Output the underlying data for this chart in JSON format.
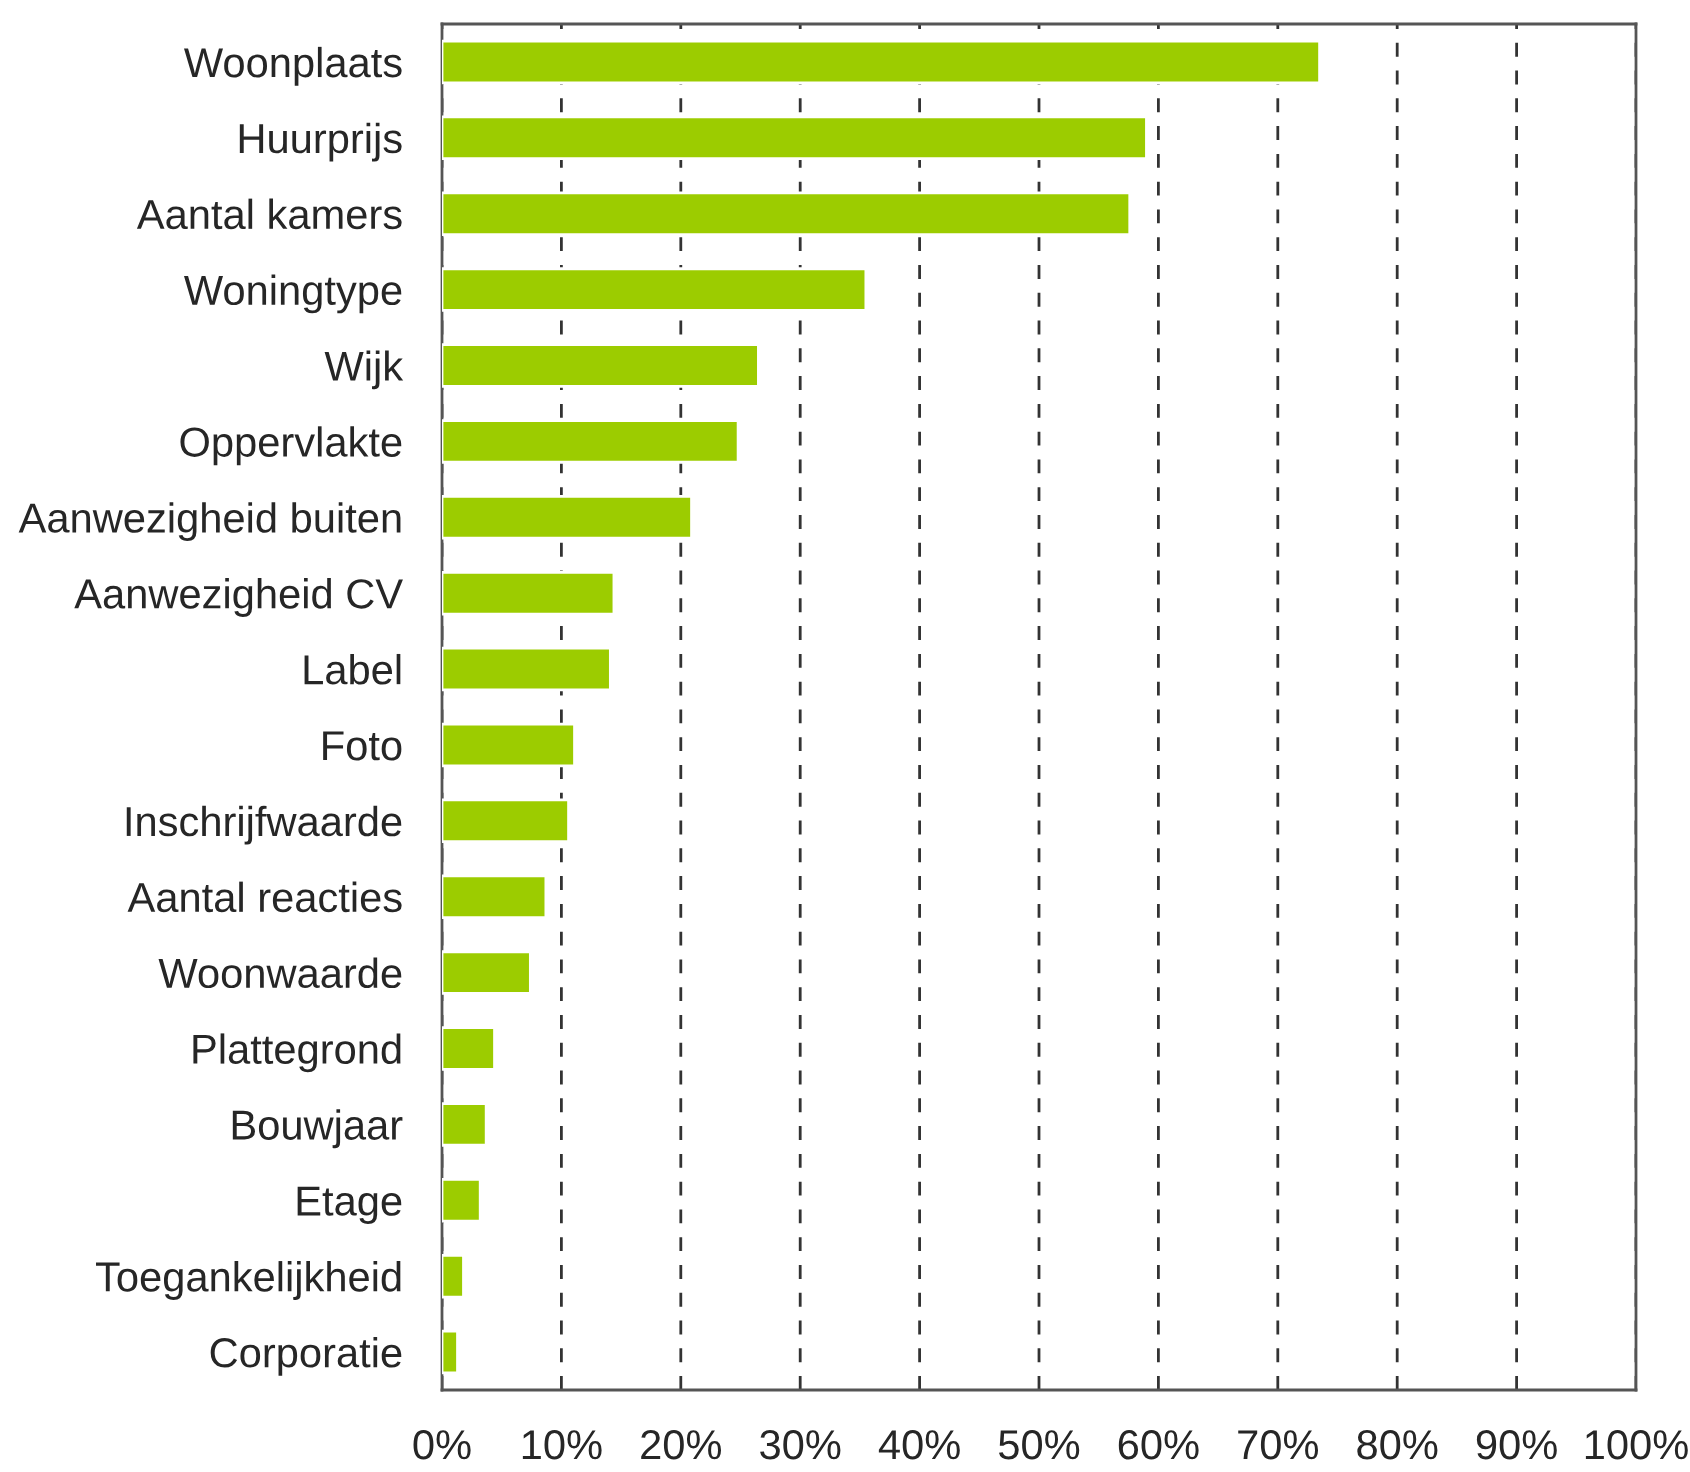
{
  "chart_data": {
    "type": "bar",
    "orientation": "horizontal",
    "color": "#9ccc00",
    "categories": [
      "Woonplaats",
      "Huurprijs",
      "Aantal kamers",
      "Woningtype",
      "Wijk",
      "Oppervlakte",
      "Aanwezigheid buiten",
      "Aanwezigheid CV",
      "Label",
      "Foto",
      "Inschrijfwaarde",
      "Aantal reacties",
      "Woonwaarde",
      "Plattegrond",
      "Bouwjaar",
      "Etage",
      "Toegankelijkheid",
      "Corporatie"
    ],
    "values": [
      73.5,
      59.0,
      57.6,
      35.5,
      26.5,
      24.8,
      20.9,
      14.4,
      14.1,
      11.1,
      10.6,
      8.7,
      7.4,
      4.4,
      3.7,
      3.2,
      1.8,
      1.3
    ],
    "xlim": [
      0,
      100
    ],
    "xticks": [
      {
        "value": 0,
        "label": "0%"
      },
      {
        "value": 10,
        "label": "10%"
      },
      {
        "value": 20,
        "label": "20%"
      },
      {
        "value": 30,
        "label": "30%"
      },
      {
        "value": 40,
        "label": "40%"
      },
      {
        "value": 50,
        "label": "50%"
      },
      {
        "value": 60,
        "label": "60%"
      },
      {
        "value": 70,
        "label": "70%"
      },
      {
        "value": 80,
        "label": "80%"
      },
      {
        "value": 90,
        "label": "90%"
      },
      {
        "value": 100,
        "label": "100%"
      }
    ],
    "grid": "x"
  }
}
